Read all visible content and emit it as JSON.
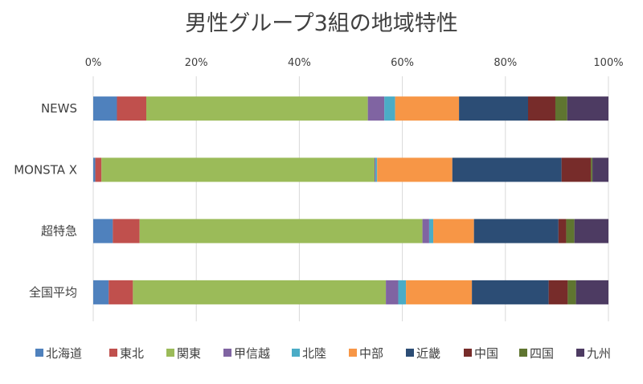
{
  "chart_data": {
    "type": "bar",
    "orientation": "horizontal",
    "stacked": "100%",
    "title": "男性グループ3組の地域特性",
    "xlim": [
      0,
      100
    ],
    "xticks": [
      "0%",
      "20%",
      "40%",
      "60%",
      "80%",
      "100%"
    ],
    "grid": true,
    "legend_position": "bottom",
    "categories": [
      "NEWS",
      "MONSTA X",
      "超特急",
      "全国平均"
    ],
    "series": [
      {
        "name": "北海道",
        "color": "#4F81BD",
        "values": [
          4.6,
          0.4,
          3.8,
          3.0
        ]
      },
      {
        "name": "東北",
        "color": "#C0504D",
        "values": [
          5.7,
          1.2,
          5.2,
          4.7
        ]
      },
      {
        "name": "関東",
        "color": "#9BBB59",
        "values": [
          43.0,
          53.0,
          54.9,
          49.1
        ]
      },
      {
        "name": "甲信越",
        "color": "#8064A2",
        "values": [
          3.2,
          0.2,
          1.3,
          2.4
        ]
      },
      {
        "name": "北陸",
        "color": "#4BACC6",
        "values": [
          2.1,
          0.3,
          0.8,
          1.5
        ]
      },
      {
        "name": "中部",
        "color": "#F79646",
        "values": [
          12.4,
          14.6,
          7.9,
          12.8
        ]
      },
      {
        "name": "近畿",
        "color": "#2C4D75",
        "values": [
          13.4,
          21.2,
          16.4,
          14.9
        ]
      },
      {
        "name": "中国",
        "color": "#772C2A",
        "values": [
          5.3,
          5.7,
          1.5,
          3.7
        ]
      },
      {
        "name": "四国",
        "color": "#5F7530",
        "values": [
          2.3,
          0.3,
          1.6,
          1.6
        ]
      },
      {
        "name": "九州",
        "color": "#4D3B62",
        "values": [
          8.0,
          3.1,
          6.6,
          6.3
        ]
      }
    ]
  }
}
